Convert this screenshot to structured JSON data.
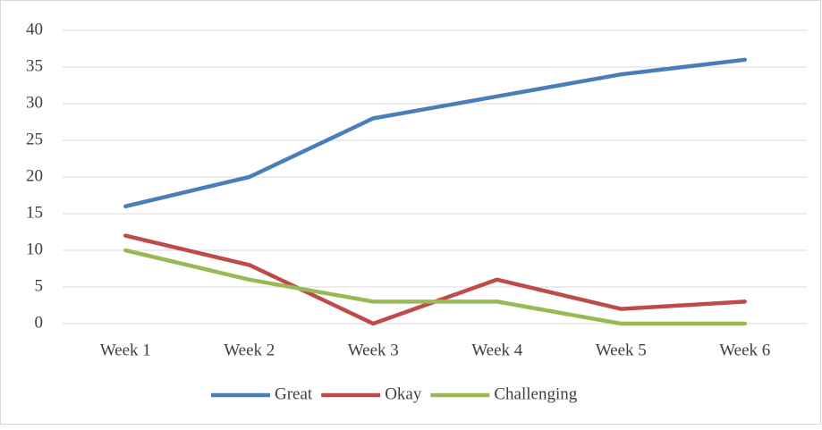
{
  "chart_data": {
    "type": "line",
    "categories": [
      "Week 1",
      "Week 2",
      "Week 3",
      "Week 4",
      "Week 5",
      "Week 6"
    ],
    "series": [
      {
        "name": "Great",
        "color": "#4a7ebb",
        "values": [
          16,
          20,
          28,
          31,
          34,
          36
        ]
      },
      {
        "name": "Okay",
        "color": "#be4b48",
        "values": [
          12,
          8,
          0,
          6,
          2,
          3
        ]
      },
      {
        "name": "Challenging",
        "color": "#98b954",
        "values": [
          10,
          6,
          3,
          3,
          0,
          0
        ]
      }
    ],
    "ylim": [
      0,
      40
    ],
    "yticks": [
      0,
      5,
      10,
      15,
      20,
      25,
      30,
      35,
      40
    ],
    "grid": true,
    "legend": "bottom"
  }
}
